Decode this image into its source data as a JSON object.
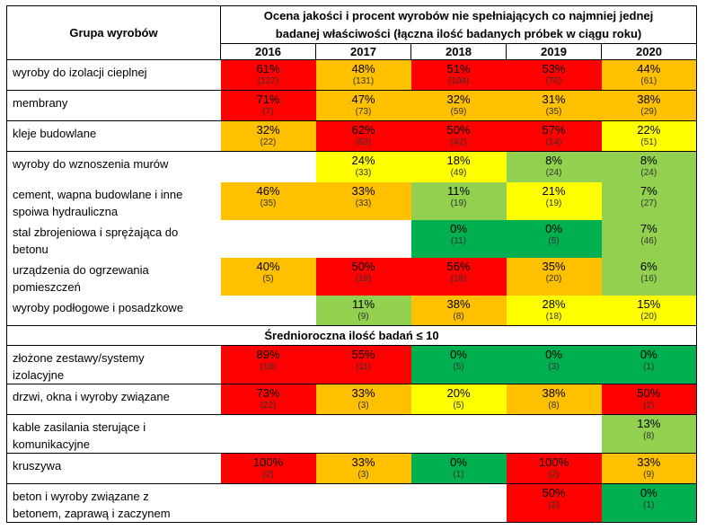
{
  "header": {
    "group_label": "Grupa wyrobów",
    "title_line1": "Ocena jakości i procent wyrobów nie spełniających co najmniej jednej",
    "title_line2": "badanej właściwości (łączna ilość badanych próbek w ciągu roku)",
    "years": [
      "2016",
      "2017",
      "2018",
      "2019",
      "2020"
    ]
  },
  "colors": {
    "red": "#ff0000",
    "orange": "#ffc000",
    "yellow": "#ffff00",
    "light_green": "#92d050",
    "dark_green": "#00b050"
  },
  "separator_label": "Średnioroczna ilość badań ≤ 10",
  "rows": [
    {
      "name": [
        "wyroby do izolacji cieplnej"
      ],
      "cells": [
        {
          "pct": "61%",
          "count": "(127)",
          "color": "red"
        },
        {
          "pct": "48%",
          "count": "(131)",
          "color": "orange"
        },
        {
          "pct": "51%",
          "count": "(104)",
          "color": "red"
        },
        {
          "pct": "53%",
          "count": "(70)",
          "color": "red"
        },
        {
          "pct": "44%",
          "count": "(61)",
          "color": "orange"
        }
      ]
    },
    {
      "name": [
        "membrany"
      ],
      "cells": [
        {
          "pct": "71%",
          "count": "(7)",
          "color": "red"
        },
        {
          "pct": "47%",
          "count": "(73)",
          "color": "orange"
        },
        {
          "pct": "32%",
          "count": "(59)",
          "color": "orange"
        },
        {
          "pct": "31%",
          "count": "(35)",
          "color": "orange"
        },
        {
          "pct": "38%",
          "count": "(29)",
          "color": "orange"
        }
      ]
    },
    {
      "name": [
        "kleje budowlane"
      ],
      "cells": [
        {
          "pct": "32%",
          "count": "(22)",
          "color": "orange"
        },
        {
          "pct": "62%",
          "count": "(63)",
          "color": "red"
        },
        {
          "pct": "50%",
          "count": "(42)",
          "color": "red"
        },
        {
          "pct": "57%",
          "count": "(14)",
          "color": "red"
        },
        {
          "pct": "22%",
          "count": "(51)",
          "color": "yellow"
        }
      ]
    },
    {
      "name": [
        "wyroby do wznoszenia murów"
      ],
      "cells": [
        {
          "pct": "",
          "count": "",
          "color": "none"
        },
        {
          "pct": "24%",
          "count": "(33)",
          "color": "yellow"
        },
        {
          "pct": "18%",
          "count": "(49)",
          "color": "yellow"
        },
        {
          "pct": "8%",
          "count": "(24)",
          "color": "light_green"
        },
        {
          "pct": "8%",
          "count": "(24)",
          "color": "light_green"
        }
      ]
    },
    {
      "name": [
        "cement, wapna budowlane i inne",
        "spoiwa hydrauliczna"
      ],
      "cells": [
        {
          "pct": "46%",
          "count": "(35)",
          "color": "orange"
        },
        {
          "pct": "33%",
          "count": "(33)",
          "color": "orange"
        },
        {
          "pct": "11%",
          "count": "(19)",
          "color": "light_green"
        },
        {
          "pct": "21%",
          "count": "(19)",
          "color": "yellow"
        },
        {
          "pct": "7%",
          "count": "(27)",
          "color": "light_green"
        }
      ]
    },
    {
      "name": [
        "stal zbrojeniowa i sprężająca do",
        "betonu"
      ],
      "cells": [
        {
          "pct": "",
          "count": "",
          "color": "none"
        },
        {
          "pct": "",
          "count": "",
          "color": "none"
        },
        {
          "pct": "0%",
          "count": "(11)",
          "color": "dark_green"
        },
        {
          "pct": "0%",
          "count": "(5)",
          "color": "dark_green"
        },
        {
          "pct": "7%",
          "count": "(46)",
          "color": "light_green"
        }
      ]
    },
    {
      "name": [
        "urządzenia do ogrzewania",
        "pomieszczeń"
      ],
      "cells": [
        {
          "pct": "40%",
          "count": "(5)",
          "color": "orange"
        },
        {
          "pct": "50%",
          "count": "(16)",
          "color": "red"
        },
        {
          "pct": "56%",
          "count": "(18)",
          "color": "red"
        },
        {
          "pct": "35%",
          "count": "(20)",
          "color": "orange"
        },
        {
          "pct": "6%",
          "count": "(16)",
          "color": "light_green"
        }
      ]
    },
    {
      "name": [
        "wyroby podłogowe i posadzkowe"
      ],
      "cells": [
        {
          "pct": "",
          "count": "",
          "color": "none"
        },
        {
          "pct": "11%",
          "count": "(9)",
          "color": "light_green"
        },
        {
          "pct": "38%",
          "count": "(8)",
          "color": "orange"
        },
        {
          "pct": "28%",
          "count": "(18)",
          "color": "yellow"
        },
        {
          "pct": "15%",
          "count": "(20)",
          "color": "yellow"
        }
      ]
    }
  ],
  "rows_low": [
    {
      "name": [
        "złożone zestawy/systemy",
        "izolacyjne"
      ],
      "cells": [
        {
          "pct": "89%",
          "count": "(18)",
          "color": "red"
        },
        {
          "pct": "55%",
          "count": "(11)",
          "color": "red"
        },
        {
          "pct": "0%",
          "count": "(5)",
          "color": "dark_green"
        },
        {
          "pct": "0%",
          "count": "(3)",
          "color": "dark_green"
        },
        {
          "pct": "0%",
          "count": "(1)",
          "color": "dark_green"
        }
      ]
    },
    {
      "name": [
        "drzwi, okna i wyroby związane"
      ],
      "cells": [
        {
          "pct": "73%",
          "count": "(22)",
          "color": "red"
        },
        {
          "pct": "33%",
          "count": "(3)",
          "color": "orange"
        },
        {
          "pct": "20%",
          "count": "(5)",
          "color": "yellow"
        },
        {
          "pct": "38%",
          "count": "(8)",
          "color": "orange"
        },
        {
          "pct": "50%",
          "count": "(2)",
          "color": "red"
        }
      ]
    },
    {
      "name": [
        "kable zasilania sterujące i",
        "komunikacyjne"
      ],
      "cells": [
        {
          "pct": "",
          "count": "",
          "color": "none"
        },
        {
          "pct": "",
          "count": "",
          "color": "none"
        },
        {
          "pct": "",
          "count": "",
          "color": "none"
        },
        {
          "pct": "",
          "count": "",
          "color": "none"
        },
        {
          "pct": "13%",
          "count": "(8)",
          "color": "light_green"
        }
      ]
    },
    {
      "name": [
        "kruszywa"
      ],
      "cells": [
        {
          "pct": "100%",
          "count": "(2)",
          "color": "red"
        },
        {
          "pct": "33%",
          "count": "(3)",
          "color": "orange"
        },
        {
          "pct": "0%",
          "count": "(1)",
          "color": "dark_green"
        },
        {
          "pct": "100%",
          "count": "(2)",
          "color": "red"
        },
        {
          "pct": "33%",
          "count": "(9)",
          "color": "orange"
        }
      ]
    },
    {
      "name": [
        "beton i wyroby związane z",
        "betonem, zaprawą i zaczynem"
      ],
      "cells": [
        {
          "pct": "",
          "count": "",
          "color": "none"
        },
        {
          "pct": "",
          "count": "",
          "color": "none"
        },
        {
          "pct": "",
          "count": "",
          "color": "none"
        },
        {
          "pct": "50%",
          "count": "(2)",
          "color": "red"
        },
        {
          "pct": "0%",
          "count": "(1)",
          "color": "dark_green"
        }
      ]
    }
  ]
}
